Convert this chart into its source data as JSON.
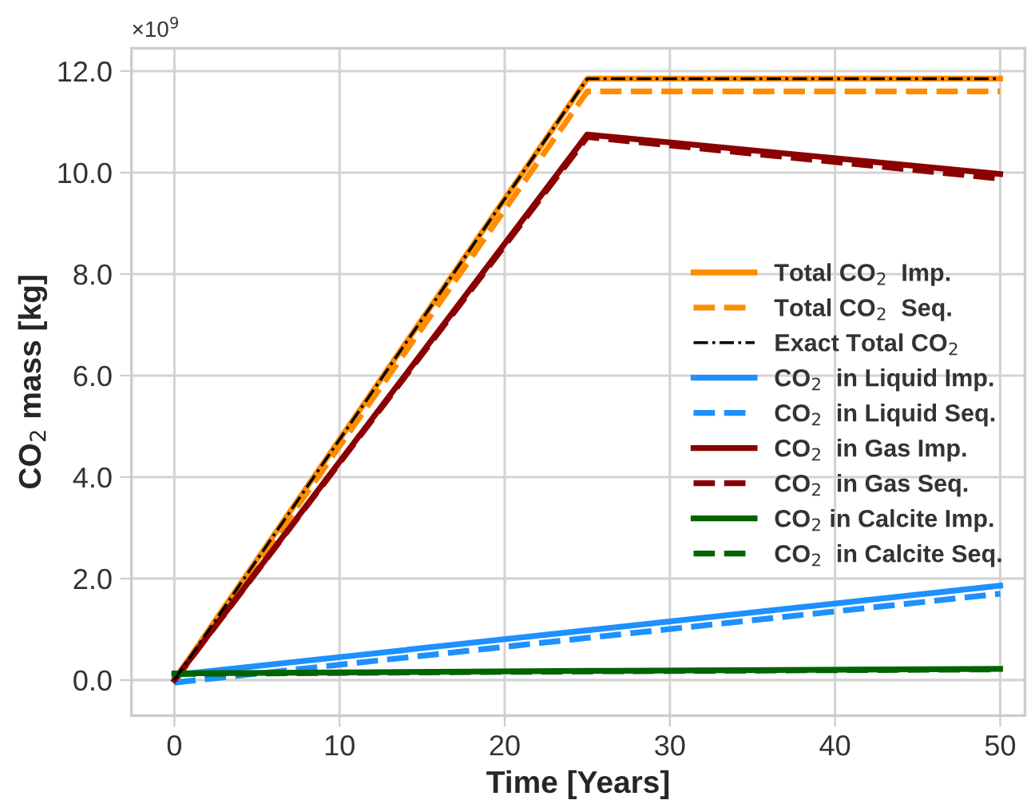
{
  "chart_data": {
    "type": "line",
    "xlabel": "Time [Years]",
    "ylabel": "CO$_{2}$ mass [kg]",
    "annotations": [
      "×10$^{9}$"
    ],
    "xlim": [
      -2.6,
      51.5
    ],
    "ylim": [
      -0.7,
      12.45
    ],
    "xticks": [
      0,
      10,
      20,
      30,
      40,
      50
    ],
    "yticks": [
      {
        "value": 0,
        "label": "0.0"
      },
      {
        "value": 2,
        "label": "2.0"
      },
      {
        "value": 4,
        "label": "4.0"
      },
      {
        "value": 6,
        "label": "6.0"
      },
      {
        "value": 8,
        "label": "8.0"
      },
      {
        "value": 10,
        "label": "10.0"
      },
      {
        "value": 12,
        "label": "12.0"
      }
    ],
    "grid": true,
    "legend": "right",
    "x": [
      0,
      25,
      50
    ],
    "series": [
      {
        "name": "Total CO$_{2}$  Imp.",
        "color": "#ff8c00",
        "line_style": "solid",
        "values": [
          0,
          11.85,
          11.85
        ]
      },
      {
        "name": "Total CO$_{2}$  Seq.",
        "color": "#ff8c00",
        "line_style": "dashed",
        "values": [
          -0.05,
          11.6,
          11.6
        ]
      },
      {
        "name": "Exact Total CO$_{2}$",
        "color": "#000000",
        "line_style": "dashdot",
        "values": [
          0,
          11.85,
          11.85
        ]
      },
      {
        "name": "CO$_{2}$  in Liquid Imp.",
        "color": "#1e90ff",
        "line_style": "solid",
        "values": [
          0.1,
          0.98,
          1.86
        ]
      },
      {
        "name": "CO$_{2}$  in Liquid Seq.",
        "color": "#1e90ff",
        "line_style": "dashed",
        "values": [
          -0.05,
          0.83,
          1.7
        ]
      },
      {
        "name": "CO$_{2}$  in Gas Imp.",
        "color": "#8b0000",
        "line_style": "solid",
        "values": [
          0,
          10.75,
          9.97
        ]
      },
      {
        "name": "CO$_{2}$  in Gas Seq.",
        "color": "#8b0000",
        "line_style": "dashed",
        "values": [
          0,
          10.7,
          9.88
        ]
      },
      {
        "name": "CO$_{2}$ in Calcite Imp.",
        "color": "#006400",
        "line_style": "solid",
        "values": [
          0.13,
          0.18,
          0.22
        ]
      },
      {
        "name": "CO$_{2}$  in Calcite Seq.",
        "color": "#006400",
        "line_style": "dashed",
        "values": [
          0.12,
          0.17,
          0.21
        ]
      }
    ]
  }
}
